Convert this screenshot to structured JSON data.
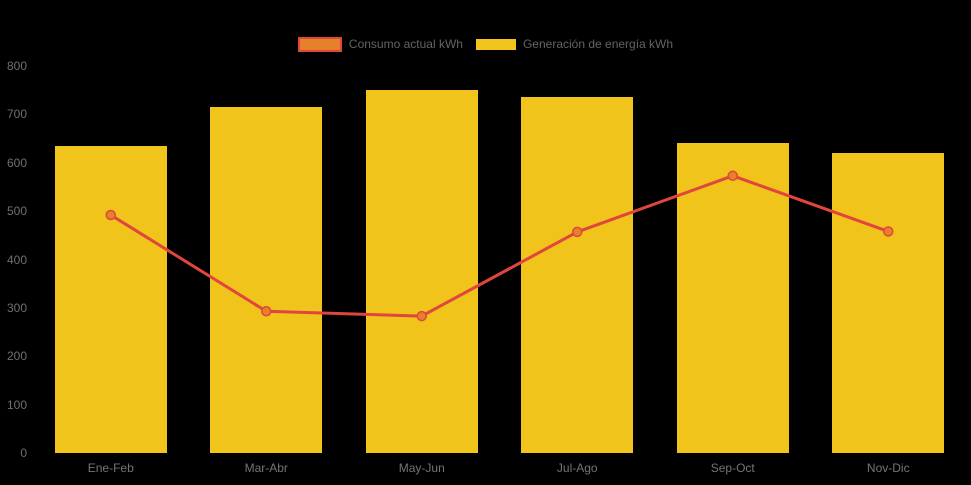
{
  "chart": {
    "background": "#000000",
    "axis_label_color": "#6F6F6F",
    "legend_text_color": "#636363"
  },
  "chart_data": {
    "type": "bar",
    "subtype": "bar-with-line-overlay",
    "title": "",
    "xlabel": "",
    "ylabel": "",
    "categories": [
      "Ene-Feb",
      "Mar-Abr",
      "May-Jun",
      "Jul-Ago",
      "Sep-Oct",
      "Nov-Dic"
    ],
    "series": [
      {
        "name": "Consumo actual kWh",
        "type": "line",
        "line_color": "#E0463E",
        "marker_fill": "#E5802B",
        "marker_stroke": "#E0463E",
        "values": [
          492,
          293,
          283,
          457,
          573,
          458
        ]
      },
      {
        "name": "Generación de energía kWh",
        "type": "bar",
        "color": "#F0C41B",
        "values": [
          635,
          715,
          750,
          735,
          640,
          620
        ]
      }
    ],
    "ylim": [
      0,
      800
    ],
    "yticks": [
      0,
      100,
      200,
      300,
      400,
      500,
      600,
      700,
      800
    ],
    "grid": false,
    "legend_position": "top-center",
    "background": "#000000"
  }
}
